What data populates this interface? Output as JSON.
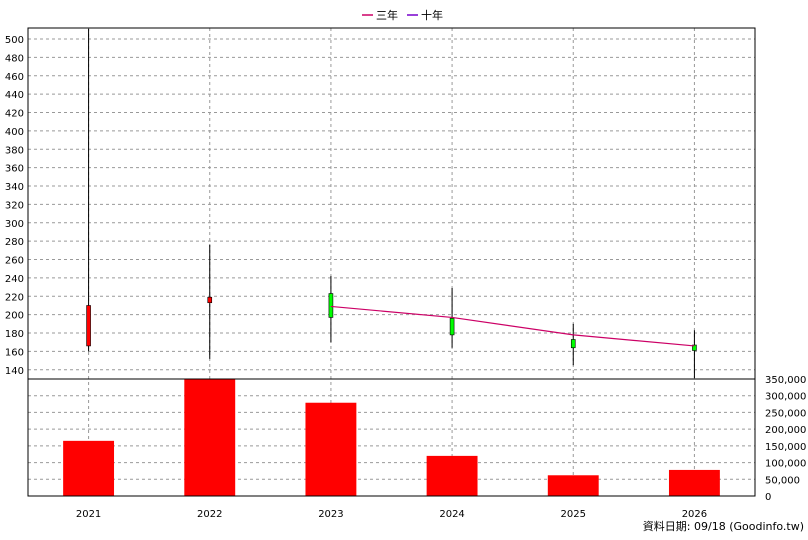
{
  "chart_data": {
    "type": "candlestick",
    "legend": [
      "三年",
      "十年"
    ],
    "legend_colors": [
      "#CC0066",
      "#7700CC"
    ],
    "categories": [
      "2021",
      "2022",
      "2023",
      "2024",
      "2025",
      "2026"
    ],
    "price": {
      "ylim": [
        130,
        512
      ],
      "yticks": [
        140,
        160,
        180,
        200,
        220,
        240,
        260,
        280,
        300,
        320,
        340,
        360,
        380,
        400,
        420,
        440,
        460,
        480,
        500
      ],
      "candles": [
        {
          "open": 166,
          "close": 210,
          "high": 511,
          "low": 160,
          "color": "#FF0000"
        },
        {
          "open": 213,
          "close": 219,
          "high": 276,
          "low": 152,
          "color": "#FF0000"
        },
        {
          "open": 223,
          "close": 197,
          "high": 242,
          "low": 170,
          "color": "#00FF00"
        },
        {
          "open": 196,
          "close": 178,
          "high": 229,
          "low": 164,
          "color": "#00FF00"
        },
        {
          "open": 173,
          "close": 164,
          "high": 190,
          "low": 145,
          "color": "#00FF00"
        },
        {
          "open": 167,
          "close": 161,
          "high": 183,
          "low": 131,
          "color": "#00FF00"
        }
      ],
      "series": [
        {
          "name": "三年",
          "color": "#CC0066",
          "start_index": 2,
          "values": [
            209,
            197,
            178,
            166
          ]
        }
      ]
    },
    "volume": {
      "ylim": [
        0,
        350000
      ],
      "yticks": [
        0,
        50000,
        100000,
        150000,
        200000,
        250000,
        300000,
        350000
      ],
      "yticklabels": [
        "0",
        "50,000",
        "100,000",
        "150,000",
        "200,000",
        "250,000",
        "300,000",
        "350,000"
      ],
      "values": [
        165000,
        349000,
        279000,
        120000,
        62000,
        78000
      ],
      "color": "#FF0000"
    },
    "grid": true
  },
  "credit": "資料日期: 09/18  (Goodinfo.tw)"
}
